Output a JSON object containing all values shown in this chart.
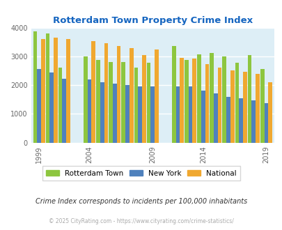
{
  "title": "Rotterdam Town Property Crime Index",
  "subtitle": "Crime Index corresponds to incidents per 100,000 inhabitants",
  "footer": "© 2025 CityRating.com - https://www.cityrating.com/crime-statistics/",
  "years": [
    1999,
    2000,
    2001,
    2004,
    2005,
    2006,
    2007,
    2008,
    2009,
    2012,
    2013,
    2014,
    2015,
    2016,
    2017,
    2018,
    2019
  ],
  "rotterdam": [
    3870,
    3800,
    2620,
    3000,
    2870,
    2810,
    2800,
    2610,
    2770,
    3350,
    2870,
    3060,
    3110,
    3000,
    2770,
    3050,
    2550
  ],
  "new_york": [
    2560,
    2440,
    2220,
    2200,
    2110,
    2050,
    2000,
    1960,
    1960,
    1960,
    1960,
    1820,
    1710,
    1580,
    1540,
    1460,
    1380
  ],
  "national": [
    3610,
    3650,
    3600,
    3530,
    3460,
    3370,
    3280,
    3050,
    3240,
    2950,
    2920,
    2730,
    2610,
    2510,
    2460,
    2380,
    2110
  ],
  "tick_years": [
    1999,
    2004,
    2009,
    2014,
    2019
  ],
  "rotterdam_color": "#8dc63f",
  "new_york_color": "#4f81bd",
  "national_color": "#f0a830",
  "bg_color": "#ddeef6",
  "ylim": [
    0,
    4000
  ],
  "yticks": [
    0,
    1000,
    2000,
    3000,
    4000
  ],
  "title_color": "#1565c0",
  "subtitle_color": "#333333",
  "footer_color": "#aaaaaa",
  "grid_color": "#ffffff",
  "bar_width": 0.27
}
